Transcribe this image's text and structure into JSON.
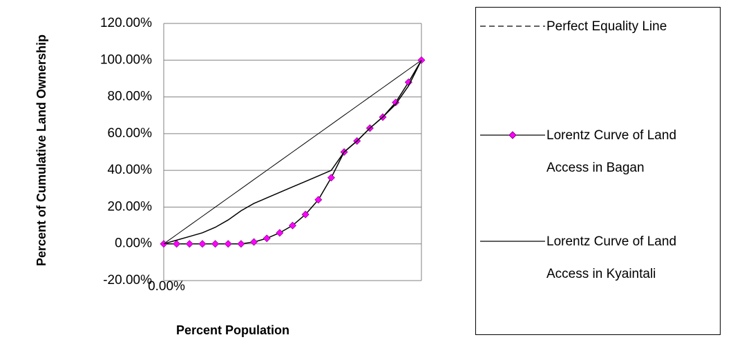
{
  "chart_data": {
    "type": "line",
    "y_label": "Percent of Cumulative Land Ownership",
    "x_label": "Percent Population",
    "x": [
      0,
      5,
      10,
      15,
      20,
      25,
      30,
      35,
      40,
      45,
      50,
      55,
      60,
      65,
      70,
      75,
      80,
      85,
      90,
      95,
      100
    ],
    "series": [
      {
        "name": "Perfect Equality Line",
        "color": "#000000",
        "values": [
          0,
          5,
          10,
          15,
          20,
          25,
          30,
          35,
          40,
          45,
          50,
          55,
          60,
          65,
          70,
          75,
          80,
          85,
          90,
          95,
          100
        ]
      },
      {
        "name": "Lorentz Curve of Land Access in Bagan",
        "color": "#ff00ff",
        "marker": "diamond",
        "values": [
          0,
          0,
          0,
          0,
          0,
          0,
          0,
          1,
          3,
          6,
          10,
          16,
          24,
          36,
          50,
          56,
          63,
          69,
          77,
          88,
          100
        ]
      },
      {
        "name": "Lorentz Curve of Land Access in Kyaintali",
        "color": "#000000",
        "values": [
          0,
          2,
          4,
          6,
          9,
          13,
          18,
          22,
          25,
          28,
          31,
          34,
          37,
          40,
          50,
          56,
          63,
          69,
          76,
          86,
          100
        ]
      }
    ],
    "xlim": [
      0,
      100
    ],
    "xticks": [
      {
        "value": 0,
        "label": "0.00%"
      }
    ],
    "ylim": [
      -20,
      120
    ],
    "yticks": [
      {
        "value": -20,
        "label": "-20.00%"
      },
      {
        "value": 0,
        "label": "0.00%"
      },
      {
        "value": 20,
        "label": "20.00%"
      },
      {
        "value": 40,
        "label": "40.00%"
      },
      {
        "value": 60,
        "label": "60.00%"
      },
      {
        "value": 80,
        "label": "80.00%"
      },
      {
        "value": 100,
        "label": "100.00%"
      },
      {
        "value": 120,
        "label": "120.00%"
      }
    ],
    "grid": true
  }
}
